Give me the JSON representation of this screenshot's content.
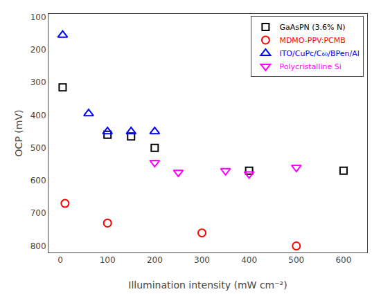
{
  "chart_data": {
    "type": "scatter",
    "xlabel": "Illumination intensity (mW cm⁻²)",
    "ylabel": "OCP (mV)",
    "xlim": [
      -25,
      650
    ],
    "ylim": [
      820,
      90
    ],
    "xticks": [
      0,
      100,
      200,
      300,
      400,
      500,
      600
    ],
    "yticks": [
      100,
      200,
      300,
      400,
      500,
      600,
      700,
      800
    ],
    "grid": false,
    "legend": "upper right",
    "series": [
      {
        "name": "GaAsPN (3.6% N)",
        "color": "black",
        "marker": "square",
        "x": [
          5,
          100,
          150,
          200,
          400,
          600
        ],
        "values": [
          315,
          460,
          465,
          500,
          570,
          570
        ]
      },
      {
        "name": "MDMO-PPV:PCMB",
        "color": "red",
        "marker": "circle",
        "x": [
          10,
          100,
          300,
          500
        ],
        "values": [
          670,
          730,
          760,
          800
        ]
      },
      {
        "name": "ITO/CuPc/C₆₀/BPen/Al",
        "color": "blue",
        "marker": "triangle-up",
        "x": [
          5,
          60,
          100,
          150,
          200
        ],
        "values": [
          155,
          395,
          450,
          450,
          450
        ]
      },
      {
        "name": "Polycristalline Si",
        "color": "magenta",
        "marker": "triangle-down",
        "x": [
          200,
          250,
          350,
          400,
          500
        ],
        "values": [
          545,
          575,
          570,
          580,
          560
        ]
      }
    ]
  }
}
